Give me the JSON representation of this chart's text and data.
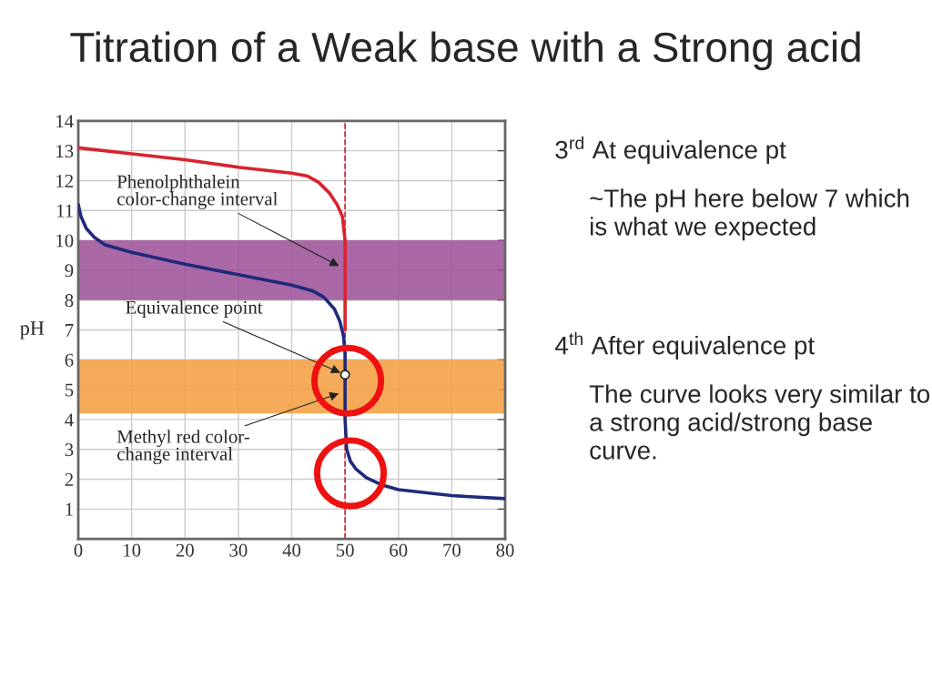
{
  "chart_data": {
    "type": "line",
    "title": "Titration of a Weak base with a Strong acid",
    "ylabel": "pH",
    "xlim": [
      0,
      80
    ],
    "ylim": [
      0,
      14
    ],
    "xticks": [
      0,
      10,
      20,
      30,
      40,
      50,
      60,
      70,
      80
    ],
    "yticks": [
      {
        "value": 0,
        "label": null
      },
      1,
      2,
      3,
      4,
      5,
      6,
      7,
      8,
      9,
      10,
      11,
      12,
      13,
      14
    ],
    "grid": true,
    "marker": "none",
    "line_style": "solid",
    "series": [
      {
        "color": "#d9232e",
        "x": [
          0,
          10,
          20,
          30,
          40,
          43,
          45,
          47,
          48.5,
          49.5,
          50,
          50,
          50
        ],
        "values": [
          13.1,
          12.9,
          12.7,
          12.45,
          12.25,
          12.15,
          11.95,
          11.6,
          11.2,
          10.8,
          10,
          8.5,
          7
        ]
      },
      {
        "color": "#1f2a7a",
        "x": [
          0,
          0.5,
          1.5,
          3,
          5,
          10,
          20,
          30,
          40,
          44,
          46,
          48,
          49,
          49.7,
          50,
          50,
          50,
          50.3,
          51,
          52,
          54,
          57,
          60,
          65,
          70,
          75,
          80
        ],
        "values": [
          11.2,
          10.8,
          10.4,
          10.1,
          9.85,
          9.6,
          9.2,
          8.85,
          8.5,
          8.3,
          8.1,
          7.7,
          7.3,
          6.8,
          6.2,
          5.5,
          4,
          3.0,
          2.6,
          2.35,
          2.05,
          1.8,
          1.65,
          1.55,
          1.45,
          1.4,
          1.35
        ]
      },
      {
        "type": "scatter",
        "color": "#ffffff",
        "x": [
          50
        ],
        "values": [
          5.5
        ],
        "marker": "circle"
      }
    ],
    "ref_lines": [
      {
        "axis": "x",
        "value": 50,
        "color": "#d9232e",
        "line_style": "dashed"
      }
    ],
    "bands": [
      {
        "axis": "y",
        "from": 8,
        "to": 10,
        "label": "Phenolphthalein\ncolor-change interval",
        "color": "#9b4f96"
      },
      {
        "axis": "y",
        "from": 4.2,
        "to": 6,
        "label": "Methyl red color-\nchange interval",
        "color": "#f39c3c"
      }
    ],
    "annotations": [
      {
        "text": "Equivalence point",
        "x": 50,
        "y": 5.5
      },
      "3$^{rd}$ At equivalence pt",
      "~The pH here below 7 which is what we expected",
      "4$^{th}$ After equivalence pt",
      "The curve looks very similar to a strong acid/strong base curve."
    ]
  }
}
